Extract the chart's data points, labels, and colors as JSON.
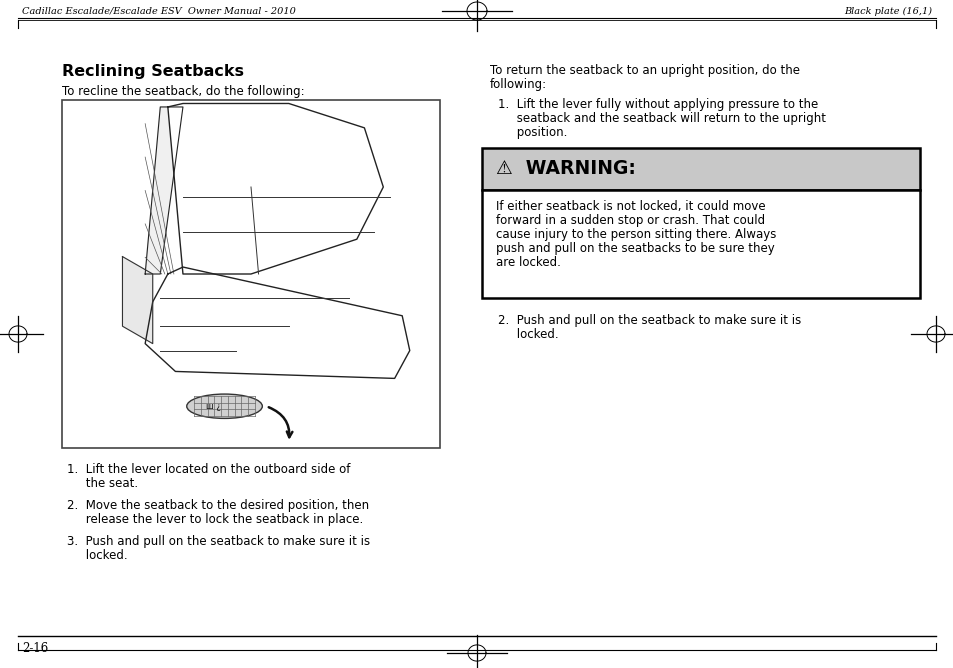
{
  "bg_color": "#ffffff",
  "page_width": 9.54,
  "page_height": 6.68,
  "header_left": "Cadillac Escalade/Escalade ESV  Owner Manual - 2010",
  "header_right": "Black plate (16,1)",
  "footer_page": "2-16",
  "title": "Reclining Seatbacks",
  "left_intro": "To recline the seatback, do the following:",
  "left_item1_a": "1.  Lift the lever located on the outboard side of",
  "left_item1_b": "     the seat.",
  "left_item2_a": "2.  Move the seatback to the desired position, then",
  "left_item2_b": "     release the lever to lock the seatback in place.",
  "left_item3_a": "3.  Push and pull on the seatback to make sure it is",
  "left_item3_b": "     locked.",
  "right_intro_a": "To return the seatback to an upright position, do the",
  "right_intro_b": "following:",
  "right_item1_num": "1.",
  "right_item1_a": "  Lift the lever fully without applying pressure to the",
  "right_item1_b": "     seatback and the seatback will return to the upright",
  "right_item1_c": "     position.",
  "warning_title": "⚠  WARNING:",
  "warning_body_1": "If either seatback is not locked, it could move",
  "warning_body_2": "forward in a sudden stop or crash. That could",
  "warning_body_3": "cause injury to the person sitting there. Always",
  "warning_body_4": "push and pull on the seatbacks to be sure they",
  "warning_body_5": "are locked.",
  "right_item2_a": "2.  Push and pull on the seatback to make sure it is",
  "right_item2_b": "     locked.",
  "warning_bg": "#c8c8c8",
  "warning_border": "#000000",
  "text_color": "#000000",
  "font_size_header": 7.0,
  "font_size_title": 11.5,
  "font_size_body": 8.5,
  "font_size_warning_title": 13.5
}
